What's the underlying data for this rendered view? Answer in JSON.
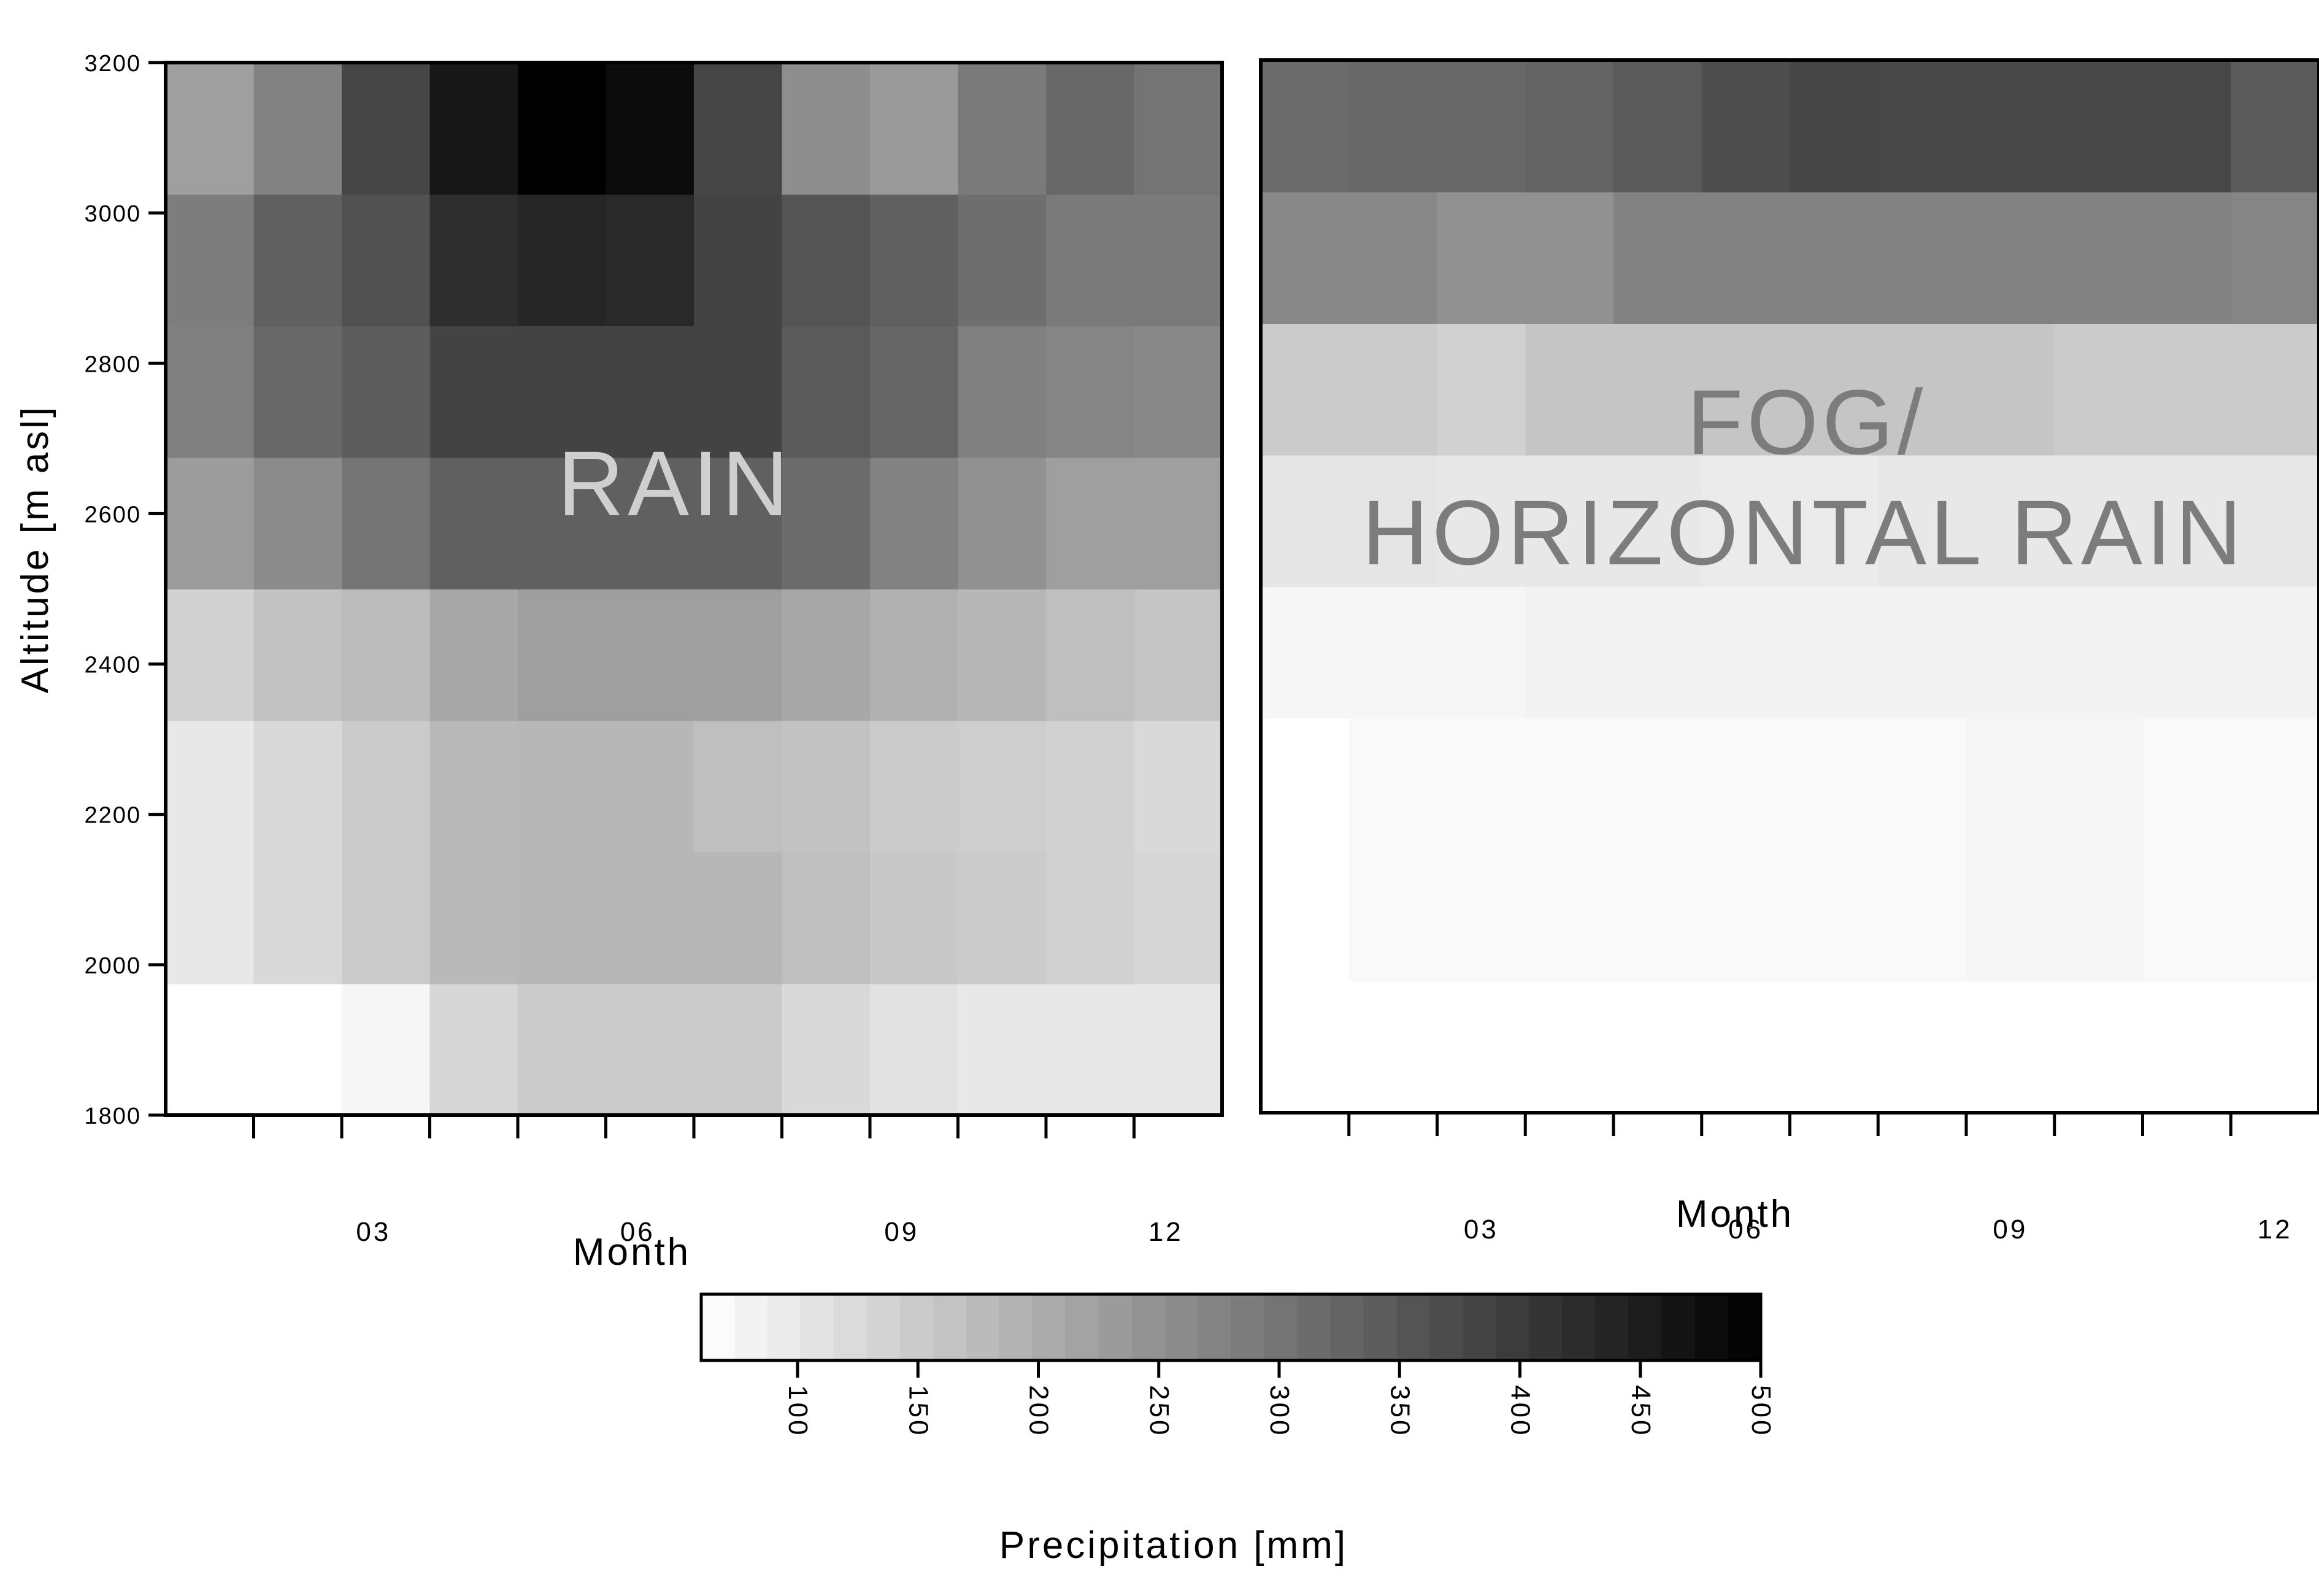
{
  "chart_data": [
    {
      "type": "heatmap",
      "annotation": "RAIN",
      "annotation_color": "#cfcfcf",
      "xlabel": "Month",
      "ylabel": "Altitude [m asl]",
      "x_tick_labels": [
        "03",
        "06",
        "09",
        "12"
      ],
      "y_tick_labels": [
        "1800",
        "2000",
        "2200",
        "2400",
        "2600",
        "2800",
        "3000",
        "3200"
      ],
      "ylim": [
        1800,
        3200
      ],
      "months": [
        1,
        2,
        3,
        4,
        5,
        6,
        7,
        8,
        9,
        10,
        11,
        12
      ],
      "altitude_bands": [
        [
          1800,
          1975
        ],
        [
          1975,
          2150
        ],
        [
          2150,
          2325
        ],
        [
          2325,
          2500
        ],
        [
          2500,
          2675
        ],
        [
          2675,
          2850
        ],
        [
          2850,
          3025
        ],
        [
          3025,
          3200
        ]
      ],
      "values_mm": [
        [
          60,
          60,
          75,
          130,
          150,
          150,
          150,
          125,
          110,
          100,
          100,
          100
        ],
        [
          100,
          125,
          150,
          180,
          185,
          185,
          185,
          170,
          155,
          150,
          140,
          130
        ],
        [
          100,
          125,
          150,
          180,
          185,
          185,
          170,
          165,
          150,
          145,
          140,
          125
        ],
        [
          140,
          165,
          175,
          210,
          225,
          225,
          225,
          210,
          195,
          185,
          170,
          160
        ],
        [
          230,
          260,
          300,
          335,
          335,
          335,
          335,
          315,
          275,
          250,
          225,
          225
        ],
        [
          280,
          320,
          340,
          385,
          385,
          385,
          385,
          345,
          325,
          280,
          270,
          265
        ],
        [
          285,
          335,
          360,
          420,
          435,
          430,
          385,
          355,
          335,
          310,
          290,
          290
        ],
        [
          225,
          275,
          380,
          460,
          500,
          480,
          380,
          255,
          235,
          290,
          320,
          300
        ]
      ]
    },
    {
      "type": "heatmap",
      "annotation": "FOG/ HORIZONTAL RAIN",
      "annotation_color": "#7c7c7c",
      "xlabel": "Month",
      "x_tick_labels": [
        "03",
        "06",
        "09",
        "12"
      ],
      "ylim": [
        1800,
        3200
      ],
      "months": [
        1,
        2,
        3,
        4,
        5,
        6,
        7,
        8,
        9,
        10,
        11,
        12
      ],
      "altitude_bands": [
        [
          1800,
          1975
        ],
        [
          1975,
          2150
        ],
        [
          2150,
          2325
        ],
        [
          2325,
          2500
        ],
        [
          2500,
          2675
        ],
        [
          2675,
          2850
        ],
        [
          2850,
          3025
        ],
        [
          3025,
          3200
        ]
      ],
      "values_mm": [
        [
          60,
          60,
          60,
          60,
          60,
          60,
          60,
          60,
          60,
          60,
          60,
          60
        ],
        [
          60,
          70,
          70,
          70,
          70,
          70,
          70,
          70,
          75,
          75,
          70,
          70
        ],
        [
          60,
          70,
          70,
          70,
          70,
          70,
          70,
          70,
          75,
          75,
          70,
          70
        ],
        [
          75,
          75,
          75,
          80,
          80,
          80,
          80,
          80,
          80,
          80,
          80,
          80
        ],
        [
          105,
          105,
          100,
          100,
          100,
          95,
          95,
          100,
          100,
          100,
          100,
          100
        ],
        [
          150,
          150,
          140,
          160,
          160,
          160,
          160,
          160,
          160,
          150,
          150,
          150
        ],
        [
          265,
          265,
          250,
          250,
          275,
          275,
          275,
          275,
          275,
          275,
          275,
          270
        ],
        [
          315,
          320,
          320,
          330,
          345,
          365,
          380,
          375,
          375,
          375,
          375,
          345
        ]
      ]
    }
  ],
  "colorbar": {
    "title": "Precipitation [mm]",
    "tick_values": [
      100,
      150,
      200,
      250,
      300,
      350,
      400,
      450,
      500
    ],
    "range": [
      60,
      500
    ],
    "segments": 32
  },
  "colors": {
    "low": "#ffffff",
    "high": "#000000",
    "frame": "#000000"
  }
}
